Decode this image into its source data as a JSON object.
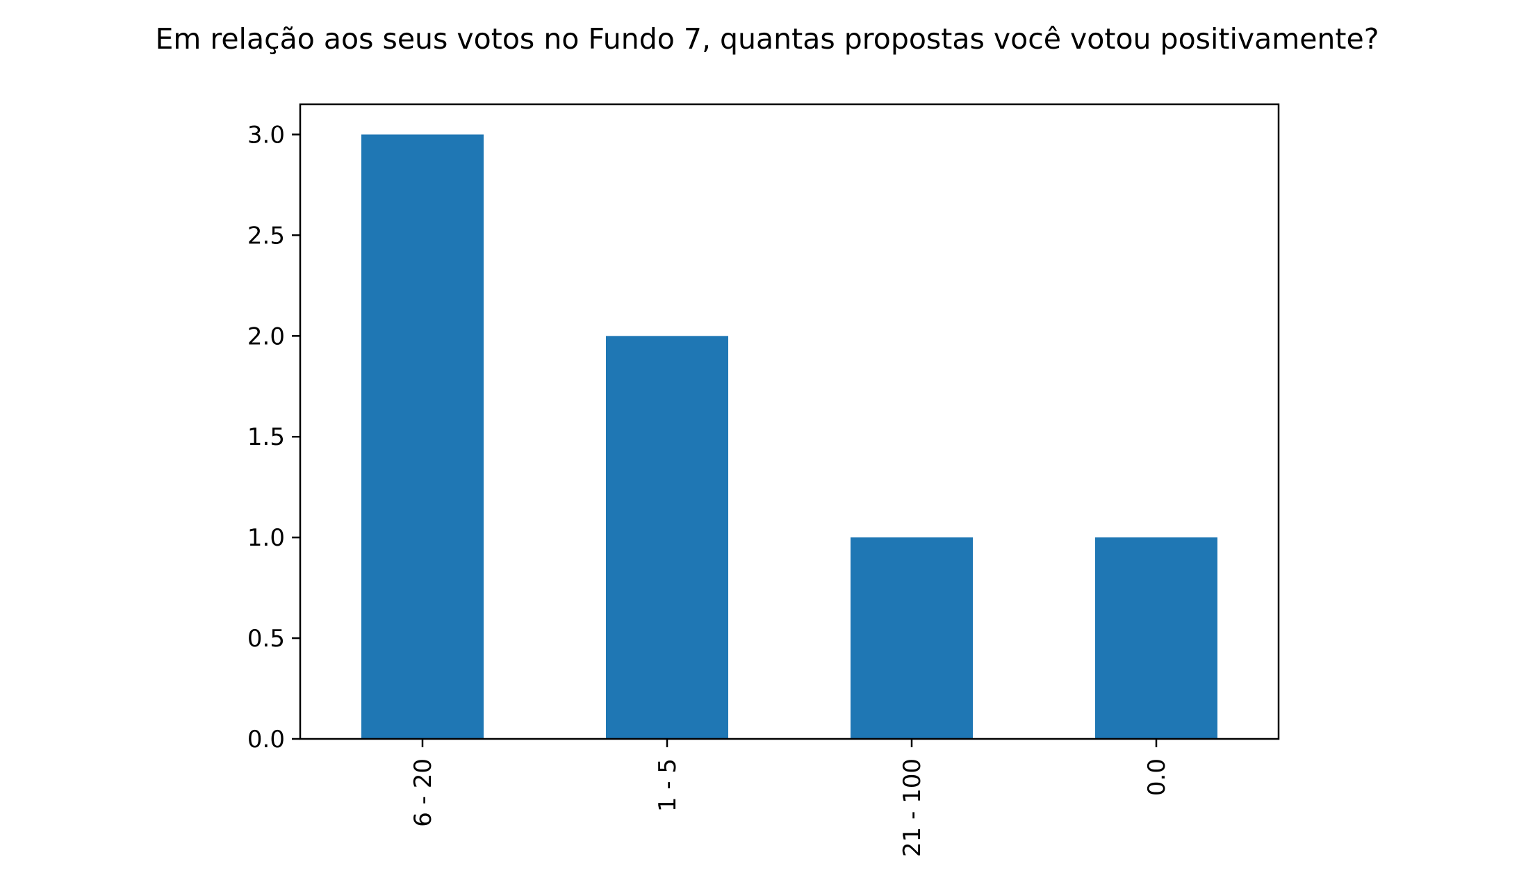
{
  "chart_data": {
    "type": "bar",
    "title": "Em relação aos seus votos no Fundo 7, quantas propostas você votou positivamente?",
    "xlabel": "",
    "ylabel": "",
    "categories": [
      "6 - 20",
      "1 - 5",
      "21 - 100",
      "0.0"
    ],
    "values": [
      3,
      2,
      1,
      1
    ],
    "ylim": [
      0,
      3.15
    ],
    "yticks": [
      0.0,
      0.5,
      1.0,
      1.5,
      2.0,
      2.5,
      3.0
    ],
    "ytick_labels": [
      "0.0",
      "0.5",
      "1.0",
      "1.5",
      "2.0",
      "2.5",
      "3.0"
    ],
    "xtick_rotation": "vertical",
    "grid": false,
    "legend": "none",
    "bar_color": "#1f77b4"
  }
}
